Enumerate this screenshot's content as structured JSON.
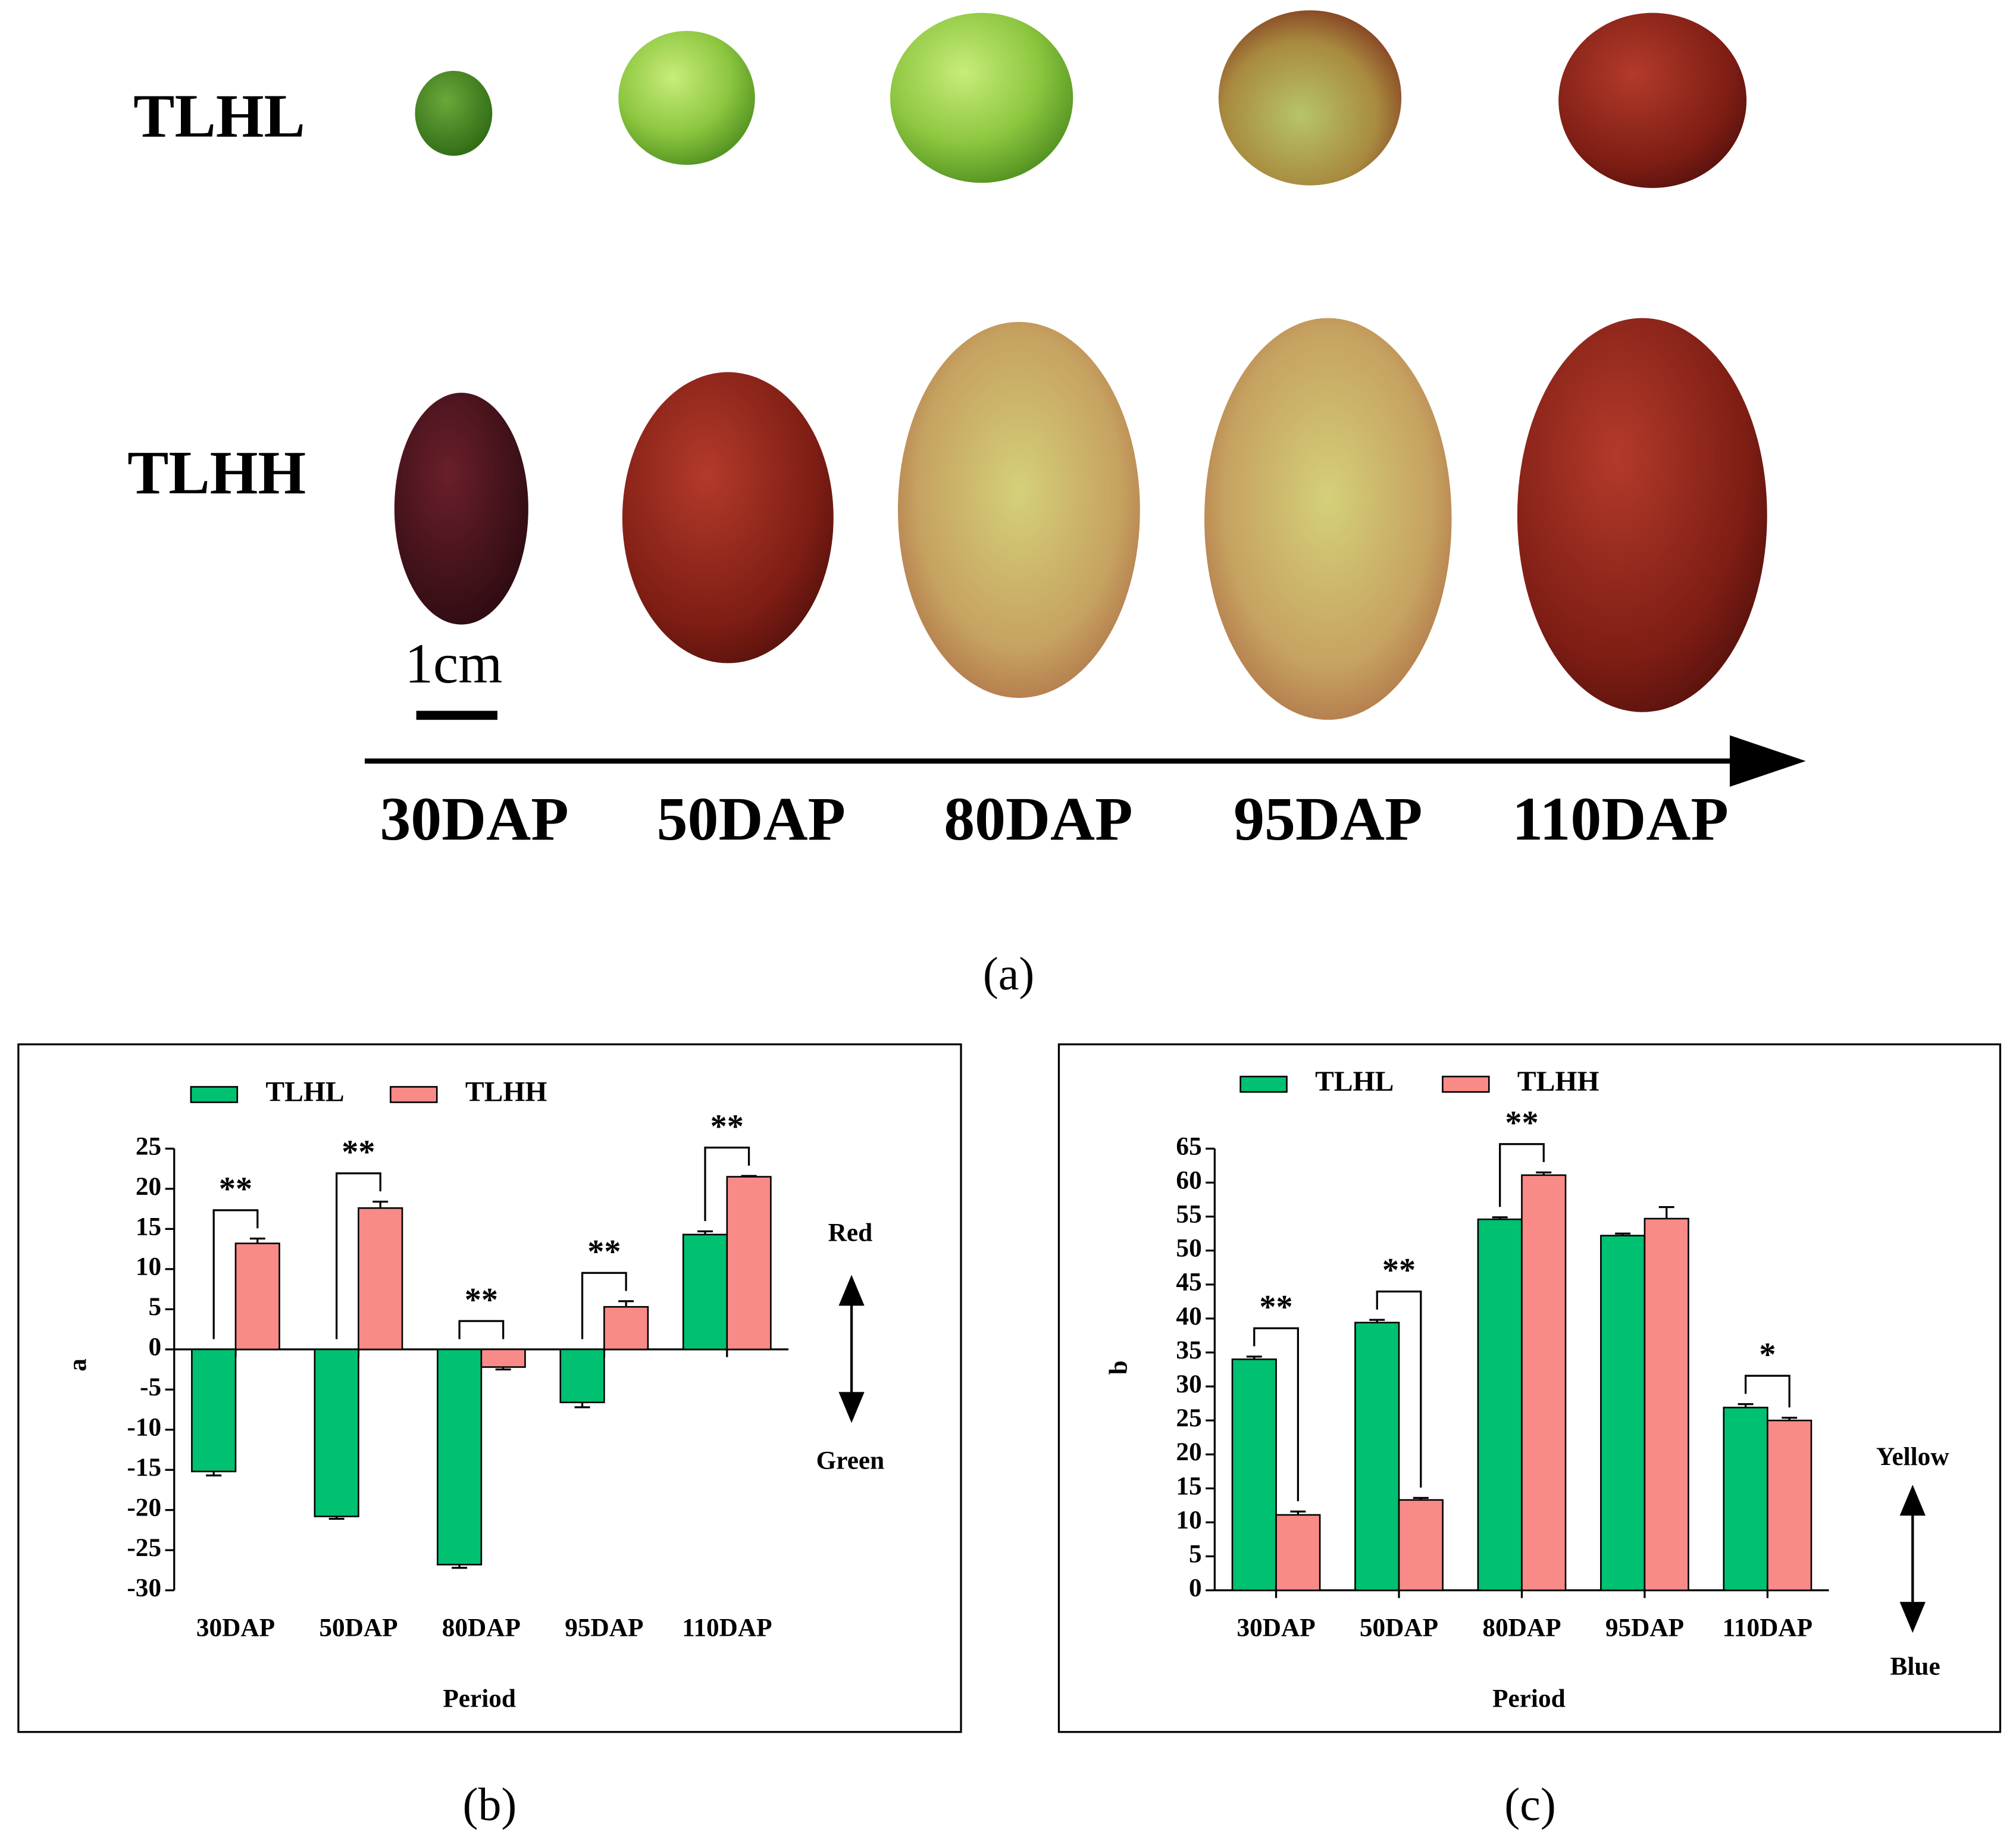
{
  "panel_a": {
    "rows": [
      "TLHL",
      "TLHH"
    ],
    "scale_label": "1cm",
    "stages": [
      "30DAP",
      "50DAP",
      "80DAP",
      "95DAP",
      "110DAP"
    ],
    "caption": "(a)"
  },
  "chart_data": [
    {
      "type": "bar",
      "caption": "(b)",
      "ylabel": "a",
      "xlabel": "Period",
      "categories": [
        "30DAP",
        "50DAP",
        "80DAP",
        "95DAP",
        "110DAP"
      ],
      "series": [
        {
          "name": "TLHL",
          "color": "#00c071",
          "values": [
            -15.2,
            -20.8,
            -26.8,
            -6.6,
            14.3
          ],
          "errors": [
            0.5,
            0.3,
            0.4,
            0.6,
            0.4
          ]
        },
        {
          "name": "TLHH",
          "color": "#f88a87",
          "values": [
            13.2,
            17.6,
            -2.2,
            5.3,
            21.5
          ],
          "errors": [
            0.6,
            0.8,
            0.3,
            0.7,
            0.1
          ]
        }
      ],
      "significance": [
        "**",
        "**",
        "**",
        "**",
        "**"
      ],
      "annotations": [
        "Red",
        "Green"
      ],
      "ylim": [
        -30,
        25
      ],
      "yticks": [
        -30,
        -25,
        -20,
        -15,
        -10,
        -5,
        0,
        5,
        10,
        15,
        20,
        25
      ]
    },
    {
      "type": "bar",
      "caption": "(c)",
      "ylabel": "b",
      "xlabel": "Period",
      "categories": [
        "30DAP",
        "50DAP",
        "80DAP",
        "95DAP",
        "110DAP"
      ],
      "series": [
        {
          "name": "TLHL",
          "color": "#00c071",
          "values": [
            34.0,
            39.4,
            54.6,
            52.2,
            26.9
          ],
          "errors": [
            0.4,
            0.4,
            0.3,
            0.3,
            0.5
          ]
        },
        {
          "name": "TLHH",
          "color": "#f88a87",
          "values": [
            11.1,
            13.3,
            61.1,
            54.7,
            25.0
          ],
          "errors": [
            0.5,
            0.3,
            0.4,
            1.7,
            0.4
          ]
        }
      ],
      "significance": [
        "**",
        "**",
        "**",
        null,
        "*"
      ],
      "annotations": [
        "Yellow",
        "Blue"
      ],
      "ylim": [
        0,
        65
      ],
      "yticks": [
        0,
        5,
        10,
        15,
        20,
        25,
        30,
        35,
        40,
        45,
        50,
        55,
        60,
        65
      ]
    }
  ]
}
